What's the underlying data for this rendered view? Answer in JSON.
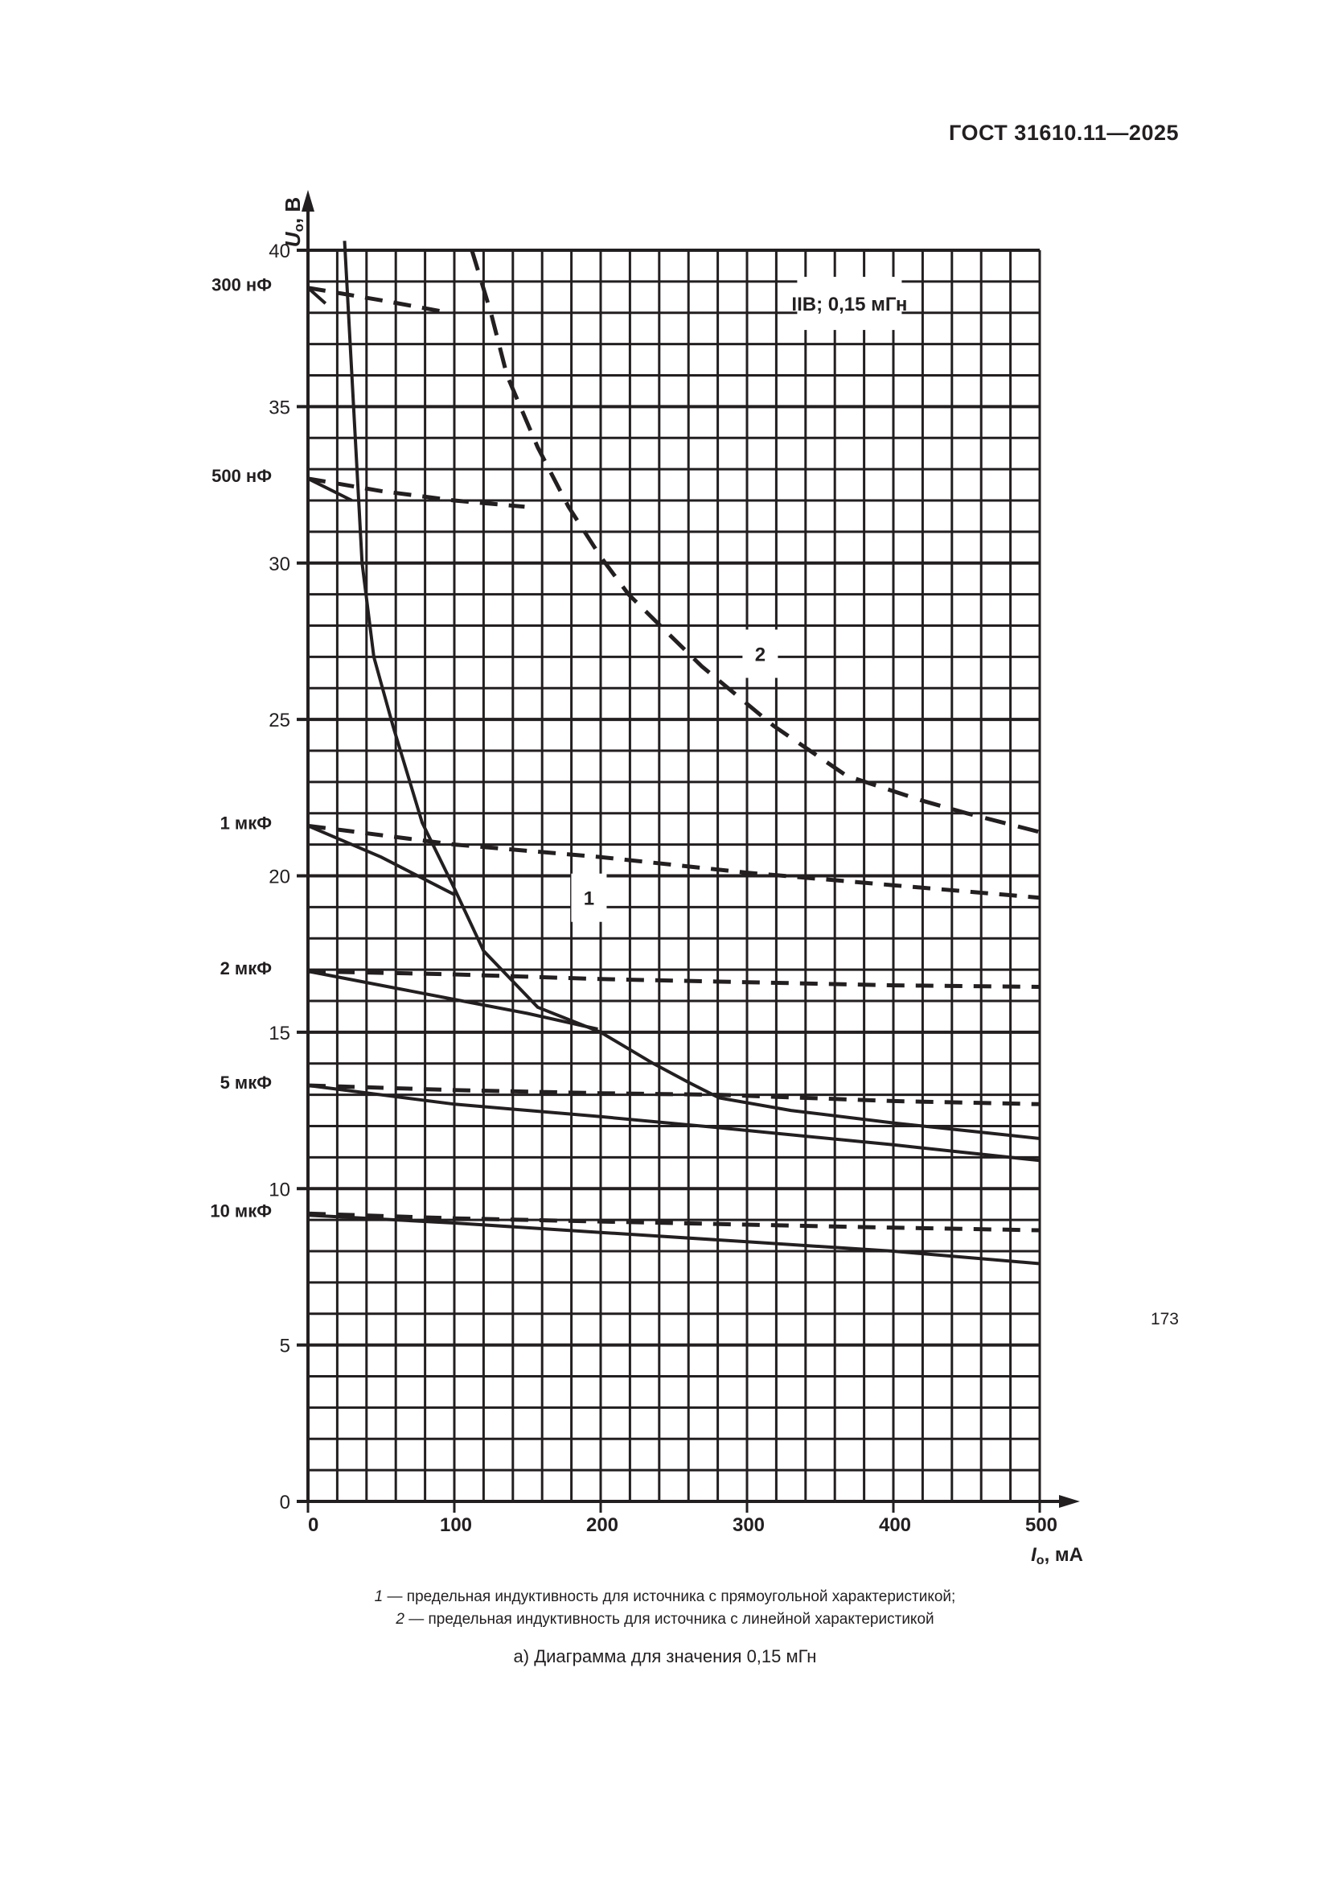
{
  "header": {
    "doc_id": "ГОСТ 31610.11—2025"
  },
  "chart_data": {
    "type": "line",
    "xlabel_symbol": "I",
    "xlabel_sub": "o",
    "xlabel_unit": ", мА",
    "ylabel_symbol": "U",
    "ylabel_sub": "o",
    "ylabel_unit": ", В",
    "xlim": [
      0,
      500
    ],
    "ylim": [
      0,
      40
    ],
    "x_ticks": [
      0,
      100,
      200,
      300,
      400,
      500
    ],
    "y_ticks": [
      0,
      5,
      10,
      15,
      20,
      25,
      30,
      35,
      40
    ],
    "grid": {
      "on": true,
      "x_step": 20,
      "y_step": 1
    },
    "annotation_box": "IIB; 0,15 мГн",
    "curves": [
      {
        "label": "1",
        "style": "solid",
        "points": [
          [
            25,
            40.3
          ],
          [
            30,
            36
          ],
          [
            37,
            30
          ],
          [
            45,
            27
          ],
          [
            58,
            24.8
          ],
          [
            78,
            21.7
          ],
          [
            100,
            19.6
          ],
          [
            120,
            17.6
          ],
          [
            157,
            15.8
          ],
          [
            200,
            15.0
          ],
          [
            236,
            14.0
          ],
          [
            260,
            13.4
          ],
          [
            281,
            12.9
          ],
          [
            330,
            12.5
          ],
          [
            400,
            12.1
          ],
          [
            450,
            11.85
          ],
          [
            500,
            11.6
          ]
        ]
      },
      {
        "label": "2",
        "style": "dashed",
        "points": [
          [
            112,
            40
          ],
          [
            125,
            38
          ],
          [
            136,
            36
          ],
          [
            157,
            33.7
          ],
          [
            178,
            31.8
          ],
          [
            200,
            30.2
          ],
          [
            219,
            29
          ],
          [
            245,
            27.8
          ],
          [
            269,
            26.7
          ],
          [
            318,
            24.8
          ],
          [
            368,
            23.2
          ],
          [
            420,
            22.4
          ],
          [
            450,
            22.0
          ],
          [
            500,
            21.4
          ]
        ]
      }
    ],
    "capacitance_lines": [
      {
        "label": "300 нФ",
        "dashed": [
          [
            0,
            38.8
          ],
          [
            50,
            38.4
          ],
          [
            97,
            38.0
          ]
        ],
        "solid": [
          [
            0,
            38.8
          ],
          [
            12,
            38.3
          ]
        ]
      },
      {
        "label": "500 нФ",
        "dashed": [
          [
            0,
            32.7
          ],
          [
            50,
            32.3
          ],
          [
            100,
            32.0
          ],
          [
            148,
            31.8
          ]
        ],
        "solid": [
          [
            0,
            32.7
          ],
          [
            30,
            32.0
          ]
        ]
      },
      {
        "label": "1 мкФ",
        "dashed": [
          [
            0,
            21.6
          ],
          [
            100,
            21.0
          ],
          [
            200,
            20.6
          ],
          [
            300,
            20.1
          ],
          [
            400,
            19.7
          ],
          [
            500,
            19.3
          ]
        ],
        "solid": [
          [
            0,
            21.6
          ],
          [
            50,
            20.6
          ],
          [
            100,
            19.4
          ]
        ]
      },
      {
        "label": "2 мкФ",
        "dashed": [
          [
            0,
            16.95
          ],
          [
            100,
            16.85
          ],
          [
            200,
            16.7
          ],
          [
            300,
            16.6
          ],
          [
            400,
            16.5
          ],
          [
            500,
            16.45
          ]
        ],
        "solid": [
          [
            0,
            16.95
          ],
          [
            50,
            16.5
          ],
          [
            100,
            16.05
          ],
          [
            150,
            15.6
          ],
          [
            198,
            15.1
          ]
        ]
      },
      {
        "label": "5 мкФ",
        "dashed": [
          [
            0,
            13.3
          ],
          [
            100,
            13.15
          ],
          [
            200,
            13.05
          ],
          [
            280,
            13.0
          ],
          [
            400,
            12.8
          ],
          [
            500,
            12.7
          ]
        ],
        "solid": [
          [
            0,
            13.3
          ],
          [
            100,
            12.7
          ],
          [
            200,
            12.3
          ],
          [
            280,
            11.95
          ],
          [
            400,
            11.4
          ],
          [
            500,
            10.9
          ]
        ]
      },
      {
        "label": "10 мкФ",
        "dashed": [
          [
            0,
            9.2
          ],
          [
            100,
            9.05
          ],
          [
            200,
            8.95
          ],
          [
            300,
            8.85
          ],
          [
            400,
            8.75
          ],
          [
            500,
            8.67
          ]
        ],
        "solid": [
          [
            0,
            9.15
          ],
          [
            100,
            8.9
          ],
          [
            200,
            8.6
          ],
          [
            300,
            8.3
          ],
          [
            400,
            8.0
          ],
          [
            500,
            7.6
          ]
        ]
      }
    ]
  },
  "legend": {
    "item1_num": "1",
    "item1_text": " — предельная индуктивность для источника с прямоугольной характеристикой;",
    "item2_num": "2",
    "item2_text": " — предельная индуктивность для источника с линейной характеристикой"
  },
  "caption": "а) Диаграмма для значения 0,15 мГн",
  "page_number": "173"
}
